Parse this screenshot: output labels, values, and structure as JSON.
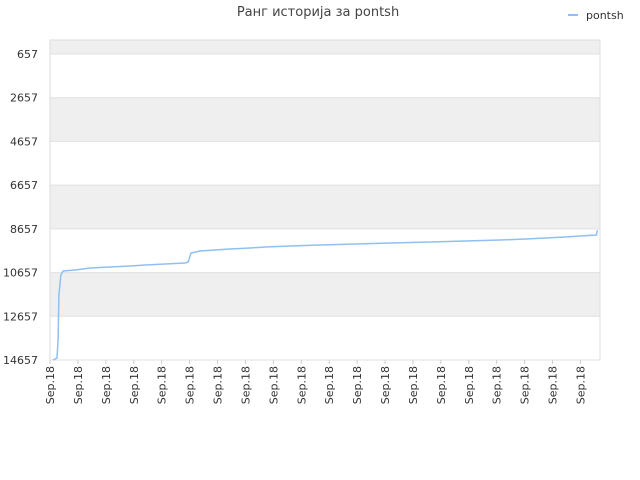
{
  "chart_data": {
    "type": "line",
    "title": "Ранг историја за pontsh",
    "legend": "top-right",
    "series": [
      {
        "name": "pontsh",
        "color": "#90c0f0",
        "x": [
          0.11,
          0.25,
          0.29,
          0.32,
          0.39,
          0.47,
          0.9,
          1.43,
          2.15,
          2.87,
          3.41,
          4.12,
          4.84,
          4.95,
          5.05,
          5.38,
          5.91,
          6.45,
          7.17,
          7.71,
          8.6,
          9.68,
          10.93,
          12.19,
          13.62,
          14.87,
          16.13,
          17.03,
          17.74,
          18.46,
          18.99,
          19.57,
          19.61
        ],
        "values": [
          14657,
          14564,
          13740,
          11682,
          10767,
          10584,
          10538,
          10447,
          10401,
          10355,
          10309,
          10264,
          10218,
          10172,
          9760,
          9669,
          9623,
          9578,
          9532,
          9486,
          9440,
          9394,
          9349,
          9303,
          9257,
          9211,
          9166,
          9120,
          9074,
          9029,
          8983,
          8937,
          8708
        ]
      }
    ],
    "xlim": [
      0,
      19.7
    ],
    "xticks": [
      {
        "value": 0,
        "label": "Sep.18"
      },
      {
        "value": 1,
        "label": "Sep.18"
      },
      {
        "value": 2,
        "label": "Sep.18"
      },
      {
        "value": 3,
        "label": "Sep.18"
      },
      {
        "value": 4,
        "label": "Sep.18"
      },
      {
        "value": 5,
        "label": "Sep.18"
      },
      {
        "value": 6,
        "label": "Sep.18"
      },
      {
        "value": 7,
        "label": "Sep.18"
      },
      {
        "value": 8,
        "label": "Sep.18"
      },
      {
        "value": 9,
        "label": "Sep.18"
      },
      {
        "value": 10,
        "label": "Sep.18"
      },
      {
        "value": 11,
        "label": "Sep.18"
      },
      {
        "value": 12,
        "label": "Sep.18"
      },
      {
        "value": 13,
        "label": "Sep.18"
      },
      {
        "value": 14,
        "label": "Sep.18"
      },
      {
        "value": 15,
        "label": "Sep.18"
      },
      {
        "value": 16,
        "label": "Sep.18"
      },
      {
        "value": 17,
        "label": "Sep.18"
      },
      {
        "value": 18,
        "label": "Sep.18"
      },
      {
        "value": 19,
        "label": "Sep.18"
      }
    ],
    "ylim": [
      14657,
      17
    ],
    "yticks": [
      657,
      2657,
      4657,
      6657,
      8657,
      10657,
      12657,
      14657
    ],
    "grid": true
  }
}
